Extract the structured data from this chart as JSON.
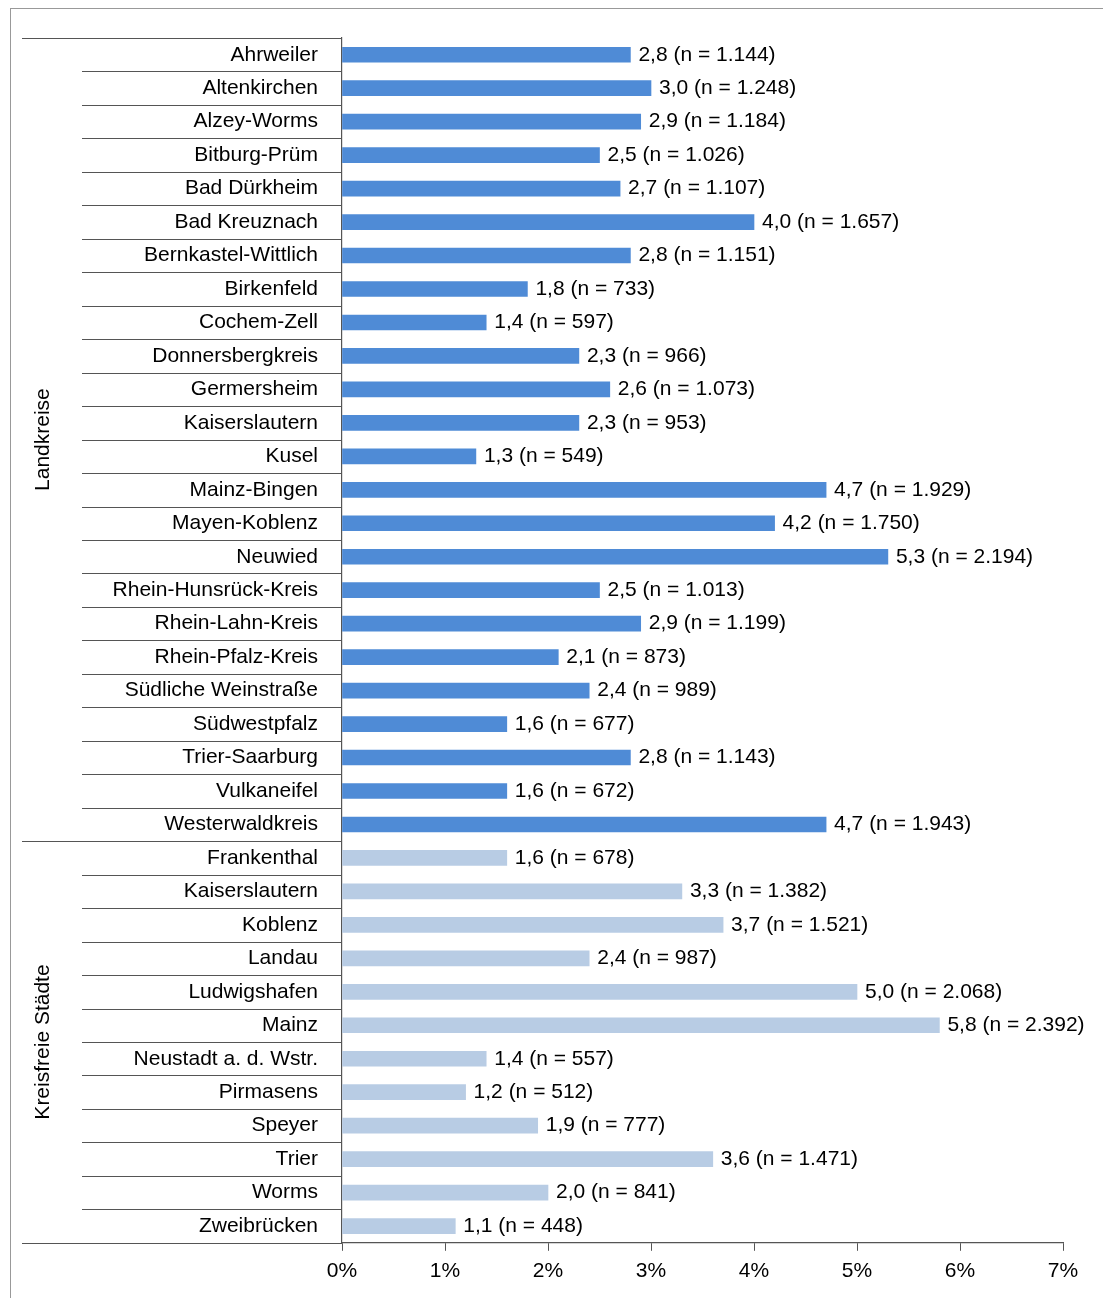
{
  "chart_data": {
    "type": "bar",
    "orientation": "horizontal",
    "categories": [
      "Ahrweiler",
      "Altenkirchen",
      "Alzey-Worms",
      "Bitburg-Prüm",
      "Bad Dürkheim",
      "Bad Kreuznach",
      "Bernkastel-Wittlich",
      "Birkenfeld",
      "Cochem-Zell",
      "Donnersbergkreis",
      "Germersheim",
      "Kaiserslautern",
      "Kusel",
      "Mainz-Bingen",
      "Mayen-Koblenz",
      "Neuwied",
      "Rhein-Hunsrück-Kreis",
      "Rhein-Lahn-Kreis",
      "Rhein-Pfalz-Kreis",
      "Südliche Weinstraße",
      "Südwestpfalz",
      "Trier-Saarburg",
      "Vulkaneifel",
      "Westerwaldkreis",
      "Frankenthal",
      "Kaiserslautern",
      "Koblenz",
      "Landau",
      "Ludwigshafen",
      "Mainz",
      "Neustadt a. d. Wstr.",
      "Pirmasens",
      "Speyer",
      "Trier",
      "Worms",
      "Zweibrücken"
    ],
    "values": [
      2.8,
      3.0,
      2.9,
      2.5,
      2.7,
      4.0,
      2.8,
      1.8,
      1.4,
      2.3,
      2.6,
      2.3,
      1.3,
      4.7,
      4.2,
      5.3,
      2.5,
      2.9,
      2.1,
      2.4,
      1.6,
      2.8,
      1.6,
      4.7,
      1.6,
      3.3,
      3.7,
      2.4,
      5.0,
      5.8,
      1.4,
      1.2,
      1.9,
      3.6,
      2.0,
      1.1
    ],
    "value_labels": [
      "2,8 (n = 1.144)",
      "3,0 (n = 1.248)",
      "2,9 (n = 1.184)",
      "2,5 (n = 1.026)",
      "2,7 (n = 1.107)",
      "4,0 (n = 1.657)",
      "2,8 (n = 1.151)",
      "1,8 (n = 733)",
      "1,4 (n = 597)",
      "2,3 (n = 966)",
      "2,6 (n = 1.073)",
      "2,3 (n = 953)",
      "1,3 (n = 549)",
      "4,7 (n = 1.929)",
      "4,2 (n = 1.750)",
      "5,3 (n = 2.194)",
      "2,5 (n = 1.013)",
      "2,9 (n = 1.199)",
      "2,1 (n = 873)",
      "2,4 (n = 989)",
      "1,6 (n = 677)",
      "2,8 (n = 1.143)",
      "1,6 (n = 672)",
      "4,7 (n = 1.943)",
      "1,6 (n = 678)",
      "3,3 (n = 1.382)",
      "3,7 (n = 1.521)",
      "2,4 (n = 987)",
      "5,0 (n = 2.068)",
      "5,8 (n = 2.392)",
      "1,4 (n = 557)",
      "1,2 (n = 512)",
      "1,9 (n = 777)",
      "3,6 (n = 1.471)",
      "2,0 (n = 841)",
      "1,1 (n = 448)"
    ],
    "colors": [
      "#4f8bd6",
      "#4f8bd6",
      "#4f8bd6",
      "#4f8bd6",
      "#4f8bd6",
      "#4f8bd6",
      "#4f8bd6",
      "#4f8bd6",
      "#4f8bd6",
      "#4f8bd6",
      "#4f8bd6",
      "#4f8bd6",
      "#4f8bd6",
      "#4f8bd6",
      "#4f8bd6",
      "#4f8bd6",
      "#4f8bd6",
      "#4f8bd6",
      "#4f8bd6",
      "#4f8bd6",
      "#4f8bd6",
      "#4f8bd6",
      "#4f8bd6",
      "#4f8bd6",
      "#b8cce4",
      "#b8cce4",
      "#b8cce4",
      "#b8cce4",
      "#b8cce4",
      "#b8cce4",
      "#b8cce4",
      "#b8cce4",
      "#b8cce4",
      "#b8cce4",
      "#b8cce4",
      "#b8cce4"
    ],
    "xlim": [
      0,
      7
    ],
    "xticks": [
      {
        "value": 0,
        "label": "0%"
      },
      {
        "value": 1,
        "label": "1%"
      },
      {
        "value": 2,
        "label": "2%"
      },
      {
        "value": 3,
        "label": "3%"
      },
      {
        "value": 4,
        "label": "4%"
      },
      {
        "value": 5,
        "label": "5%"
      },
      {
        "value": 6,
        "label": "6%"
      },
      {
        "value": 7,
        "label": "7%"
      }
    ],
    "annotations": [
      "Landkreise",
      "Kreisfreie Städte"
    ],
    "grid": false,
    "legend": false
  }
}
